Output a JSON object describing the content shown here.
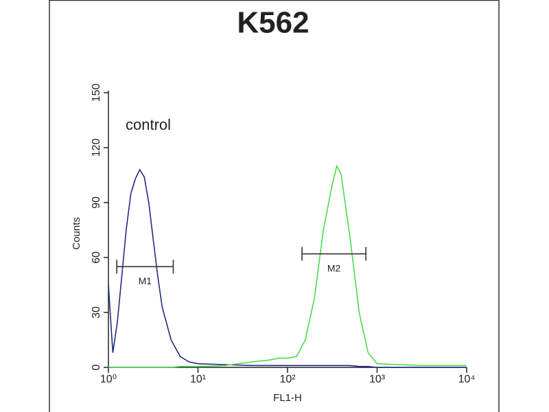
{
  "chart_data": {
    "type": "line",
    "title": "K562",
    "xlabel": "FL1-H",
    "ylabel": "Counts",
    "xscale": "log",
    "xlim": [
      1,
      10000
    ],
    "ylim": [
      0,
      150
    ],
    "xticks": [
      {
        "value": 1,
        "label": "10⁰"
      },
      {
        "value": 10,
        "label": "10¹"
      },
      {
        "value": 100,
        "label": "10²"
      },
      {
        "value": 1000,
        "label": "10³"
      },
      {
        "value": 10000,
        "label": "10⁴"
      }
    ],
    "yticks": [
      0,
      30,
      60,
      90,
      120,
      150
    ],
    "annotation": "control",
    "x": [
      1,
      1.12,
      1.26,
      1.41,
      1.58,
      1.78,
      2,
      2.24,
      2.51,
      2.82,
      3.16,
      3.55,
      3.98,
      5.01,
      6.31,
      7.94,
      10,
      20,
      40,
      63,
      79,
      100,
      126,
      158,
      200,
      251,
      316,
      355,
      398,
      501,
      631,
      794,
      1000,
      3162,
      10000
    ],
    "series": [
      {
        "color": "#1f2a85",
        "values": [
          45,
          8,
          25,
          50,
          75,
          95,
          103,
          108,
          104,
          90,
          70,
          50,
          33,
          15,
          6,
          3,
          2,
          1.5,
          1,
          1,
          1,
          1,
          1,
          1,
          1,
          1,
          1,
          1,
          1,
          1,
          0.5,
          0.5,
          0,
          0,
          0
        ]
      },
      {
        "color": "#4cd94c",
        "values": [
          0,
          0,
          0,
          0,
          0,
          0,
          0,
          0,
          0,
          0,
          0,
          0,
          0,
          0,
          0.5,
          0.5,
          0.5,
          1,
          3,
          4,
          5,
          5,
          6,
          15,
          38,
          75,
          100,
          110,
          105,
          70,
          30,
          8,
          2,
          1,
          1
        ]
      }
    ],
    "markers": [
      {
        "label": "M1",
        "x": [
          1.24,
          5.3
        ],
        "y": 55
      },
      {
        "label": "M2",
        "x": [
          145,
          750
        ],
        "y": 62
      }
    ]
  }
}
